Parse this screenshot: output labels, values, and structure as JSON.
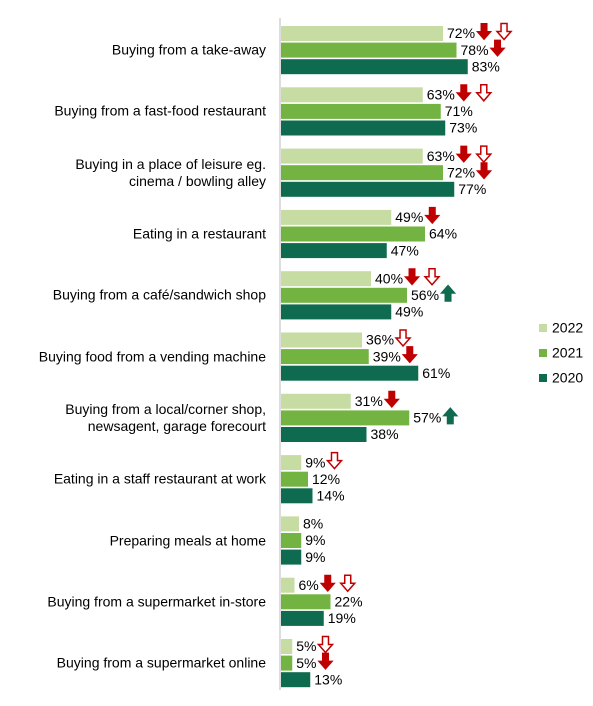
{
  "chart_data": {
    "type": "bar",
    "orientation": "horizontal",
    "categories": [
      "Buying from a take-away",
      "Buying from a fast-food restaurant",
      "Buying in a place of leisure eg.\ncinema / bowling alley",
      "Eating in a restaurant",
      "Buying from a café/sandwich shop",
      "Buying food from a vending machine",
      "Buying from a local/corner shop,\nnewsagent, garage forecourt",
      "Eating in a staff restaurant at work",
      "Preparing meals at home",
      "Buying from a supermarket in-store",
      "Buying from a supermarket online"
    ],
    "series": [
      {
        "name": "2022",
        "color": "#c6dca3",
        "values": [
          72,
          63,
          63,
          49,
          40,
          36,
          31,
          9,
          8,
          6,
          5
        ],
        "value_labels": [
          "72%",
          "63%",
          "63%",
          "49%",
          "40%",
          "36%",
          "31%",
          "9%",
          "8%",
          "6%",
          "5%"
        ],
        "arrows": [
          [
            "down",
            "down-open"
          ],
          [
            "down",
            "down-open"
          ],
          [
            "down",
            "down-open"
          ],
          [
            "down"
          ],
          [
            "down",
            "down-open"
          ],
          [
            "down-open"
          ],
          [
            "down"
          ],
          [
            "down-open"
          ],
          [],
          [
            "down",
            "down-open"
          ],
          [
            "down-open"
          ]
        ]
      },
      {
        "name": "2021",
        "color": "#72b341",
        "values": [
          78,
          71,
          72,
          64,
          56,
          39,
          57,
          12,
          9,
          22,
          5
        ],
        "value_labels": [
          "78%",
          "71%",
          "72%",
          "64%",
          "56%",
          "39%",
          "57%",
          "12%",
          "9%",
          "22%",
          "5%"
        ],
        "arrows": [
          [
            "down"
          ],
          [],
          [
            "down"
          ],
          [],
          [
            "up"
          ],
          [
            "down"
          ],
          [
            "up"
          ],
          [],
          [],
          [],
          [
            "down"
          ]
        ]
      },
      {
        "name": "2020",
        "color": "#0f6b4f",
        "values": [
          83,
          73,
          77,
          47,
          49,
          61,
          38,
          14,
          9,
          19,
          13
        ],
        "value_labels": [
          "83%",
          "73%",
          "77%",
          "47%",
          "49%",
          "61%",
          "38%",
          "14%",
          "9%",
          "19%",
          "13%"
        ],
        "arrows": [
          [],
          [],
          [],
          [],
          [],
          [],
          [],
          [],
          [],
          [],
          []
        ]
      }
    ],
    "xlim": [
      0,
      100
    ],
    "arrow_colors": {
      "down": "#c00000",
      "up": "#0f6b4f"
    },
    "legend": "right"
  }
}
